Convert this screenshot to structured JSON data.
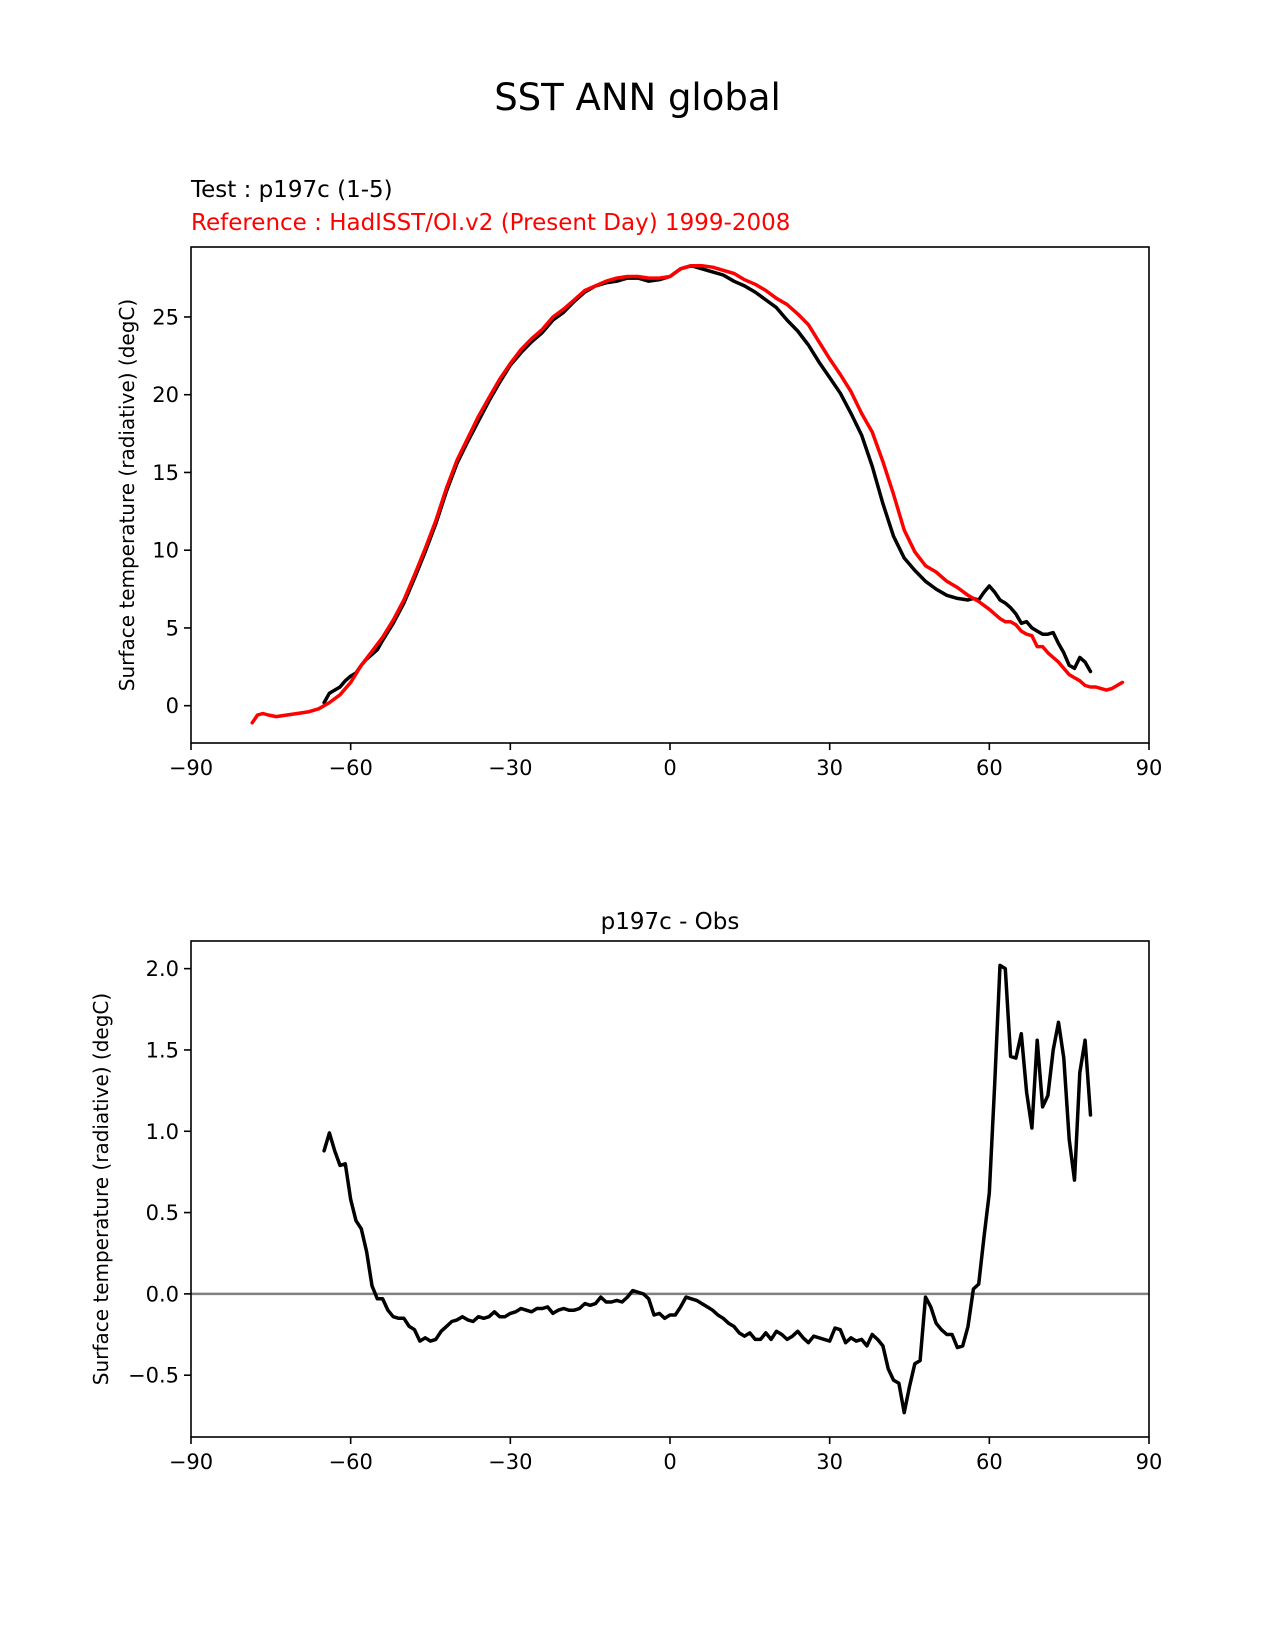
{
  "figure": {
    "suptitle": "SST ANN global"
  },
  "colors": {
    "test": "#000000",
    "reference": "#ff0000",
    "zero_line": "#808080",
    "axes": "#000000"
  },
  "chart_data": [
    {
      "type": "line",
      "title_test": "Test : p197c (1-5)",
      "title_reference": "Reference : HadISST/OI.v2 (Present Day) 1999-2008",
      "xlabel": "",
      "ylabel": "Surface temperature (radiative) (degC)",
      "xlim": [
        -90,
        90
      ],
      "ylim": [
        -2.4,
        29.5
      ],
      "xticks": [
        -90,
        -60,
        -30,
        0,
        30,
        60,
        90
      ],
      "xtick_labels": [
        "−90",
        "−60",
        "−30",
        "0",
        "30",
        "60",
        "90"
      ],
      "yticks": [
        0,
        5,
        10,
        15,
        20,
        25
      ],
      "ytick_labels": [
        "0",
        "5",
        "10",
        "15",
        "20",
        "25"
      ],
      "grid": false,
      "series": [
        {
          "name": "Test : p197c (1-5)",
          "color": "#000000",
          "x": [
            -65,
            -64,
            -63,
            -62,
            -61,
            -60,
            -59,
            -58,
            -57,
            -56,
            -55,
            -54,
            -52,
            -50,
            -48,
            -46,
            -44,
            -42,
            -40,
            -38,
            -36,
            -34,
            -32,
            -30,
            -28,
            -26,
            -24,
            -22,
            -20,
            -18,
            -16,
            -14,
            -12,
            -10,
            -8,
            -6,
            -4,
            -2,
            0,
            2,
            4,
            6,
            8,
            10,
            12,
            14,
            16,
            18,
            20,
            22,
            24,
            26,
            28,
            30,
            32,
            34,
            36,
            38,
            40,
            42,
            44,
            46,
            48,
            50,
            52,
            54,
            56,
            57,
            58,
            59,
            60,
            61,
            62,
            63,
            64,
            65,
            66,
            67,
            68,
            69,
            70,
            71,
            72,
            73,
            74,
            75,
            76,
            77,
            78,
            79
          ],
          "y": [
            0.2,
            0.8,
            1.0,
            1.2,
            1.6,
            1.9,
            2.1,
            2.6,
            3.0,
            3.3,
            3.6,
            4.2,
            5.3,
            6.6,
            8.2,
            9.9,
            11.7,
            13.8,
            15.6,
            17.0,
            18.3,
            19.6,
            20.8,
            21.9,
            22.7,
            23.4,
            24.0,
            24.8,
            25.3,
            26.0,
            26.6,
            27.0,
            27.2,
            27.3,
            27.5,
            27.5,
            27.3,
            27.4,
            27.6,
            28.1,
            28.3,
            28.1,
            27.9,
            27.7,
            27.3,
            27.0,
            26.6,
            26.1,
            25.6,
            24.8,
            24.1,
            23.2,
            22.1,
            21.1,
            20.1,
            18.8,
            17.4,
            15.4,
            13.0,
            10.9,
            9.5,
            8.7,
            8.0,
            7.5,
            7.1,
            6.9,
            6.8,
            6.9,
            6.8,
            7.3,
            7.7,
            7.3,
            6.8,
            6.6,
            6.3,
            5.9,
            5.3,
            5.4,
            5.0,
            4.8,
            4.6,
            4.6,
            4.7,
            4.0,
            3.4,
            2.6,
            2.4,
            3.1,
            2.8,
            2.2
          ]
        },
        {
          "name": "Reference : HadISST/OI.v2 (Present Day) 1999-2008",
          "color": "#ff0000",
          "x": [
            -78.5,
            -77.5,
            -76.5,
            -75.5,
            -74,
            -72,
            -70,
            -68,
            -66,
            -64,
            -62,
            -60,
            -58,
            -56,
            -54,
            -52,
            -50,
            -48,
            -46,
            -44,
            -42,
            -40,
            -38,
            -36,
            -34,
            -32,
            -30,
            -28,
            -26,
            -24,
            -22,
            -20,
            -18,
            -16,
            -14,
            -12,
            -10,
            -8,
            -6,
            -4,
            -2,
            0,
            2,
            4,
            6,
            8,
            10,
            12,
            14,
            16,
            18,
            20,
            22,
            24,
            26,
            28,
            30,
            32,
            34,
            36,
            38,
            40,
            42,
            44,
            46,
            48,
            50,
            52,
            54,
            56,
            58,
            60,
            62,
            63,
            64,
            65,
            66,
            67,
            68,
            69,
            70,
            71,
            72,
            73,
            74,
            75,
            76,
            77,
            78,
            79,
            80,
            81,
            82,
            83,
            84,
            85
          ],
          "y": [
            -1.1,
            -0.6,
            -0.5,
            -0.6,
            -0.7,
            -0.6,
            -0.5,
            -0.4,
            -0.2,
            0.2,
            0.7,
            1.5,
            2.6,
            3.5,
            4.4,
            5.5,
            6.8,
            8.4,
            10.1,
            11.9,
            14.0,
            15.8,
            17.2,
            18.6,
            19.8,
            21.0,
            22.0,
            22.9,
            23.6,
            24.2,
            25.0,
            25.5,
            26.1,
            26.7,
            27.0,
            27.3,
            27.5,
            27.6,
            27.6,
            27.5,
            27.5,
            27.6,
            28.1,
            28.3,
            28.3,
            28.2,
            28.0,
            27.8,
            27.4,
            27.1,
            26.7,
            26.2,
            25.8,
            25.2,
            24.5,
            23.4,
            22.3,
            21.3,
            20.2,
            18.8,
            17.6,
            15.7,
            13.6,
            11.3,
            9.9,
            9.0,
            8.6,
            8.0,
            7.6,
            7.1,
            6.7,
            6.2,
            5.6,
            5.4,
            5.4,
            5.2,
            4.8,
            4.6,
            4.5,
            3.8,
            3.8,
            3.4,
            3.1,
            2.8,
            2.4,
            2.0,
            1.8,
            1.6,
            1.3,
            1.2,
            1.2,
            1.1,
            1.0,
            1.1,
            1.3,
            1.5
          ]
        }
      ]
    },
    {
      "type": "line",
      "title": "p197c - Obs",
      "xlabel": "",
      "ylabel": "Surface temperature (radiative) (degC)",
      "xlim": [
        -90,
        90
      ],
      "ylim": [
        -0.88,
        2.17
      ],
      "xticks": [
        -90,
        -60,
        -30,
        0,
        30,
        60,
        90
      ],
      "xtick_labels": [
        "−90",
        "−60",
        "−30",
        "0",
        "30",
        "60",
        "90"
      ],
      "yticks": [
        -0.5,
        0.0,
        0.5,
        1.0,
        1.5,
        2.0
      ],
      "ytick_labels": [
        "−0.5",
        "0.0",
        "0.5",
        "1.0",
        "1.5",
        "2.0"
      ],
      "hline": 0.0,
      "grid": false,
      "series": [
        {
          "name": "p197c - Obs",
          "color": "#000000",
          "x": [
            -65,
            -64,
            -63,
            -62,
            -61,
            -60,
            -59,
            -58,
            -57,
            -56,
            -55,
            -54,
            -53,
            -52,
            -51,
            -50,
            -49,
            -48,
            -47,
            -46,
            -45,
            -44,
            -43,
            -42,
            -41,
            -40,
            -39,
            -38,
            -37,
            -36,
            -35,
            -34,
            -33,
            -32,
            -31,
            -30,
            -29,
            -28,
            -27,
            -26,
            -25,
            -24,
            -23,
            -22,
            -21,
            -20,
            -19,
            -18,
            -17,
            -16,
            -15,
            -14,
            -13,
            -12,
            -11,
            -10,
            -9,
            -8,
            -7,
            -6,
            -5,
            -4,
            -3,
            -2,
            -1,
            0,
            1,
            2,
            3,
            4,
            5,
            6,
            7,
            8,
            9,
            10,
            11,
            12,
            13,
            14,
            15,
            16,
            17,
            18,
            19,
            20,
            21,
            22,
            23,
            24,
            25,
            26,
            27,
            28,
            29,
            30,
            31,
            32,
            33,
            34,
            35,
            36,
            37,
            38,
            39,
            40,
            41,
            42,
            43,
            44,
            45,
            46,
            47,
            48,
            49,
            50,
            51,
            52,
            53,
            54,
            55,
            56,
            57,
            58,
            59,
            60,
            61,
            62,
            63,
            64,
            65,
            66,
            67,
            68,
            69,
            70,
            71,
            72,
            73,
            74,
            75,
            76,
            77,
            78,
            79
          ],
          "y": [
            0.88,
            0.99,
            0.88,
            0.79,
            0.8,
            0.58,
            0.45,
            0.4,
            0.26,
            0.05,
            -0.03,
            -0.03,
            -0.1,
            -0.14,
            -0.15,
            -0.15,
            -0.2,
            -0.22,
            -0.29,
            -0.27,
            -0.29,
            -0.28,
            -0.23,
            -0.2,
            -0.17,
            -0.16,
            -0.14,
            -0.16,
            -0.17,
            -0.14,
            -0.15,
            -0.14,
            -0.11,
            -0.14,
            -0.14,
            -0.12,
            -0.11,
            -0.09,
            -0.1,
            -0.11,
            -0.09,
            -0.09,
            -0.08,
            -0.12,
            -0.1,
            -0.09,
            -0.1,
            -0.1,
            -0.09,
            -0.06,
            -0.07,
            -0.06,
            -0.02,
            -0.05,
            -0.05,
            -0.04,
            -0.05,
            -0.02,
            0.02,
            0.01,
            0.0,
            -0.03,
            -0.13,
            -0.12,
            -0.15,
            -0.13,
            -0.13,
            -0.08,
            -0.02,
            -0.03,
            -0.04,
            -0.06,
            -0.08,
            -0.1,
            -0.13,
            -0.15,
            -0.18,
            -0.2,
            -0.24,
            -0.26,
            -0.24,
            -0.28,
            -0.28,
            -0.24,
            -0.28,
            -0.23,
            -0.25,
            -0.28,
            -0.26,
            -0.23,
            -0.27,
            -0.3,
            -0.26,
            -0.27,
            -0.28,
            -0.29,
            -0.21,
            -0.22,
            -0.3,
            -0.27,
            -0.29,
            -0.28,
            -0.32,
            -0.25,
            -0.28,
            -0.32,
            -0.46,
            -0.53,
            -0.55,
            -0.73,
            -0.57,
            -0.43,
            -0.41,
            -0.02,
            -0.08,
            -0.18,
            -0.22,
            -0.25,
            -0.25,
            -0.33,
            -0.32,
            -0.2,
            0.03,
            0.06,
            0.35,
            0.62,
            1.29,
            2.02,
            2.0,
            1.46,
            1.45,
            1.6,
            1.24,
            1.02,
            1.56,
            1.15,
            1.22,
            1.5,
            1.67,
            1.45,
            0.95,
            0.7,
            1.36,
            1.56,
            1.1
          ]
        }
      ]
    }
  ]
}
